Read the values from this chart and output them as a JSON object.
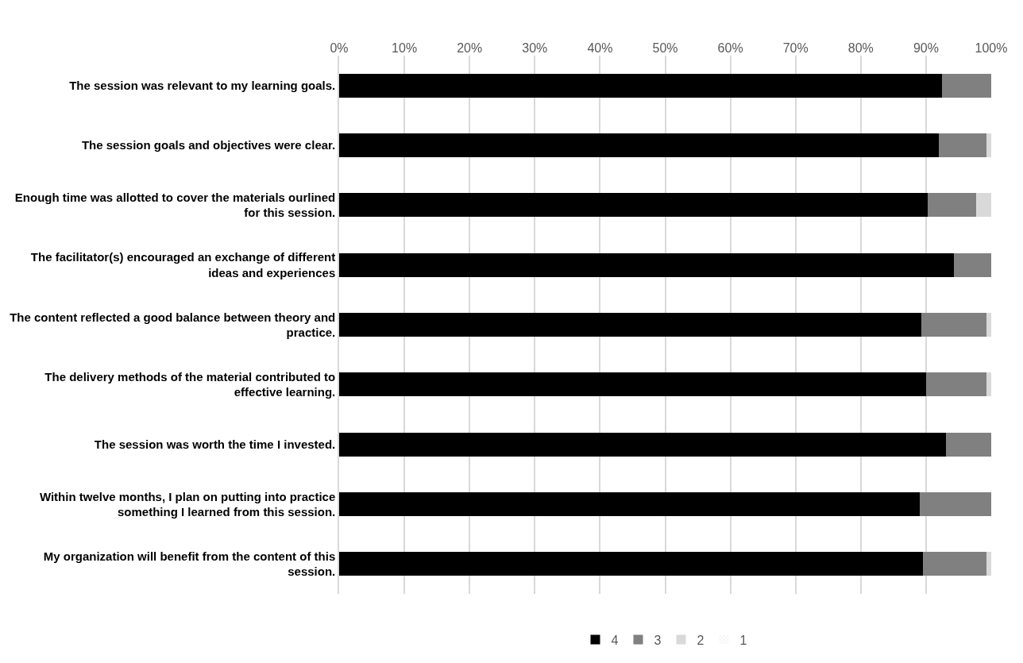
{
  "chart_data": {
    "type": "bar",
    "orientation": "horizontal",
    "stacked": true,
    "categories": [
      "The session was relevant to my learning goals.",
      "The session goals and objectives were clear.",
      "Enough time was allotted to cover the materials ourlined for this session.",
      "The facilitator(s) encouraged an exchange of different ideas and experiences",
      "The content reflected a good balance between theory and practice.",
      "The delivery methods of the material contributed to effective learning.",
      "The session was worth the time I invested.",
      "Within twelve months, I plan on putting into practice something I learned from this session.",
      "My organization will benefit from the content of this session."
    ],
    "series": [
      {
        "name": "4",
        "color": "#000000",
        "values": [
          92.5,
          92,
          90.3,
          94.3,
          89.3,
          90,
          93,
          89,
          89.5
        ]
      },
      {
        "name": "3",
        "color": "#808080",
        "values": [
          7.5,
          7.3,
          7.4,
          5.7,
          10,
          9.3,
          7,
          11,
          9.8
        ]
      },
      {
        "name": "2",
        "color": "#d9d9d9",
        "values": [
          0,
          0.7,
          2.3,
          0,
          0.7,
          0.7,
          0,
          0,
          0.7
        ]
      },
      {
        "name": "1",
        "color": "#d9d9d9",
        "values": [
          0,
          0,
          0,
          0,
          0,
          0,
          0,
          0,
          0
        ]
      }
    ],
    "xlim": [
      0,
      100
    ],
    "xticks": [
      {
        "value": 0,
        "label": "0%"
      },
      {
        "value": 10,
        "label": "10%"
      },
      {
        "value": 20,
        "label": "20%"
      },
      {
        "value": 30,
        "label": "30%"
      },
      {
        "value": 40,
        "label": "40%"
      },
      {
        "value": 50,
        "label": "50%"
      },
      {
        "value": 60,
        "label": "60%"
      },
      {
        "value": 70,
        "label": "70%"
      },
      {
        "value": 80,
        "label": "80%"
      },
      {
        "value": 90,
        "label": "90%"
      },
      {
        "value": 100,
        "label": "100%"
      }
    ],
    "grid": "x",
    "legend": "bottom"
  }
}
